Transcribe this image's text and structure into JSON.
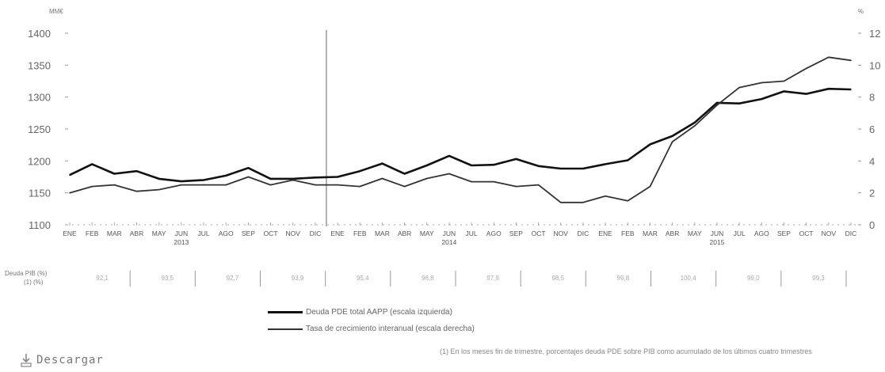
{
  "chart_data": {
    "type": "line",
    "title": "",
    "left_axis_unit": "MM€",
    "right_axis_unit": "%",
    "left_ylim": [
      1100,
      1400
    ],
    "left_ticks": [
      1100,
      1150,
      1200,
      1250,
      1300,
      1350,
      1400
    ],
    "right_ylim": [
      0,
      12
    ],
    "right_ticks": [
      0,
      2,
      4,
      6,
      8,
      10,
      12
    ],
    "x": [
      "ENE",
      "FEB",
      "MAR",
      "ABR",
      "MAY",
      "JUN",
      "JUL",
      "AGO",
      "SEP",
      "OCT",
      "NOV",
      "DIC",
      "ENE",
      "FEB",
      "MAR",
      "ABR",
      "MAY",
      "JUN",
      "JUL",
      "AGO",
      "SEP",
      "OCT",
      "NOV",
      "DIC",
      "ENE",
      "FEB",
      "MAR",
      "ABR",
      "MAY",
      "JUN",
      "JUL",
      "AGO",
      "SEP",
      "OCT",
      "NOV",
      "DIC"
    ],
    "year_labels": [
      {
        "index": 5,
        "label": "2013"
      },
      {
        "index": 17,
        "label": "2014"
      },
      {
        "index": 29,
        "label": "2015"
      }
    ],
    "series": [
      {
        "name": "Deuda PDE total AAPP (escala izquierda)",
        "axis": "left",
        "values": [
          1178,
          1195,
          1180,
          1184,
          1172,
          1168,
          1170,
          1177,
          1189,
          1172,
          1172,
          1174,
          1175,
          1184,
          1196,
          1180,
          1193,
          1208,
          1193,
          1194,
          1203,
          1192,
          1188,
          1188,
          1195,
          1201,
          1226,
          1239,
          1260,
          1291,
          1290,
          1297,
          1309,
          1305,
          1313,
          1312
        ]
      },
      {
        "name": "Tasa de crecimiento interanual (escala derecha)",
        "axis": "right",
        "values": [
          2.0,
          2.4,
          2.5,
          2.1,
          2.2,
          2.5,
          2.5,
          2.5,
          3.0,
          2.5,
          2.8,
          2.5,
          2.5,
          2.4,
          2.9,
          2.4,
          2.9,
          3.2,
          2.7,
          2.7,
          2.4,
          2.5,
          1.4,
          1.4,
          1.8,
          1.5,
          2.4,
          5.2,
          6.2,
          7.5,
          8.6,
          8.9,
          9.0,
          9.8,
          10.5,
          10.3
        ]
      }
    ],
    "table_label": [
      "Deuda PIB (%)",
      "(1) (%)"
    ],
    "table_values": [
      "92,1",
      "93,5",
      "92,7",
      "93,9",
      "95,4",
      "96,8",
      "97,9",
      "98,5",
      "99,8",
      "100,4",
      "99,0",
      "99,3"
    ],
    "footnote": "(1) En los meses fin de trimestre, porcentajes deuda PDE sobre PIB como acumulado de los últimos cuatro trimestres",
    "grid": false,
    "legend_position": "bottom"
  },
  "download": {
    "label": "Descargar",
    "icon": "download-icon"
  },
  "colors": {
    "series1": "#111111",
    "series2": "#333333",
    "axis": "#999999"
  }
}
